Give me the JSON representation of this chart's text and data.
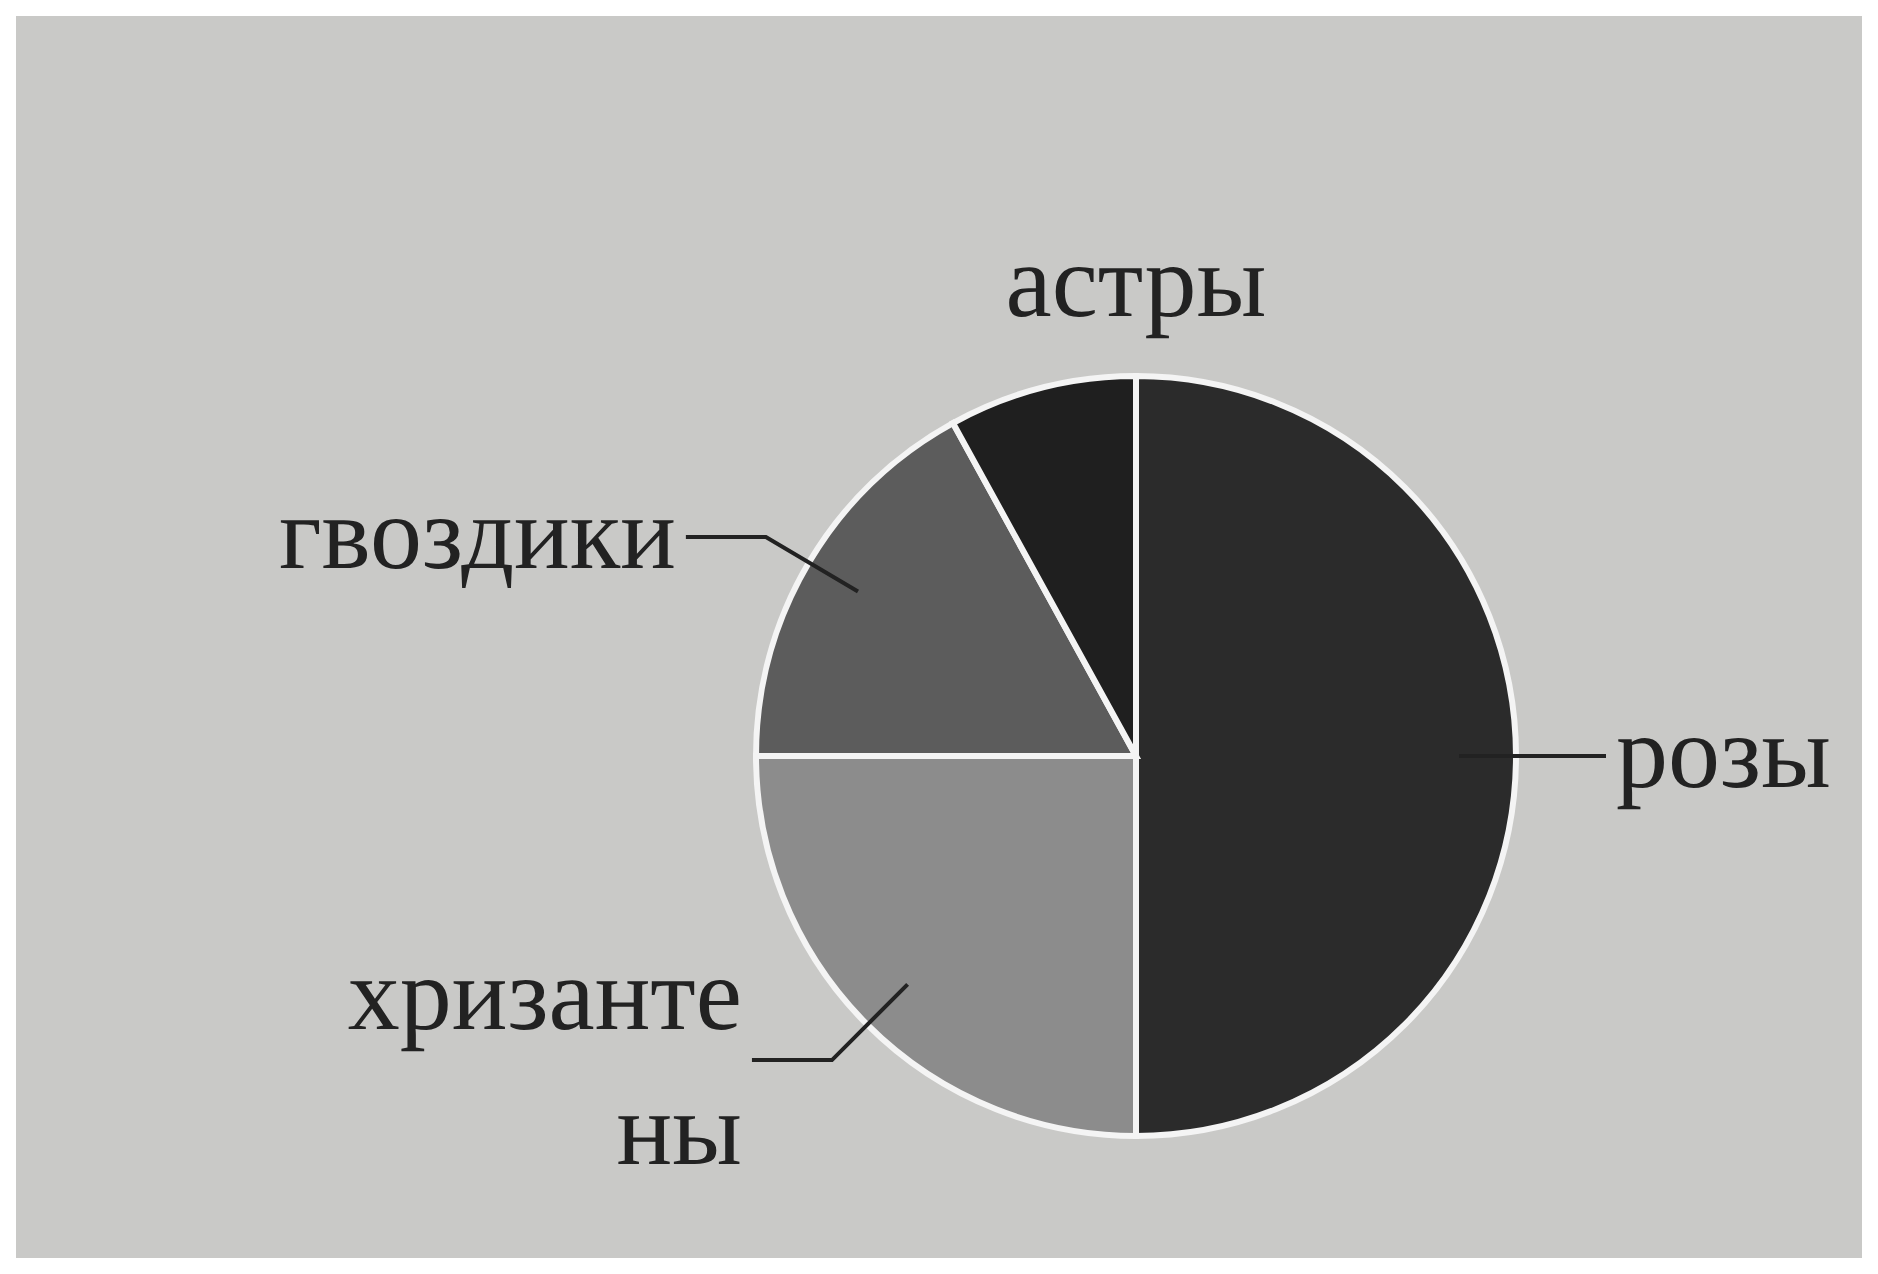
{
  "chart_data": {
    "type": "pie",
    "categories": [
      "розы",
      "хризанте ны",
      "гвоздики",
      "астры"
    ],
    "values": [
      50,
      25,
      17,
      8
    ],
    "colors": [
      "#2b2b2b",
      "#8c8c8c",
      "#5c5c5c",
      "#1f1f1f"
    ]
  }
}
